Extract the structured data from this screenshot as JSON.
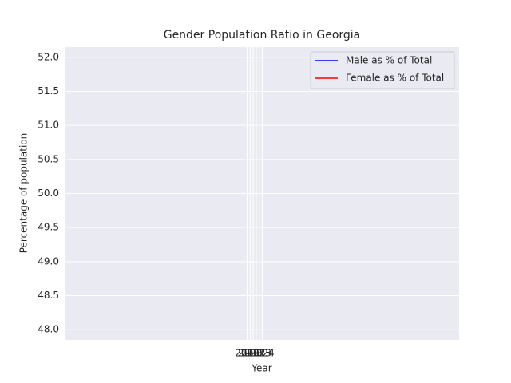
{
  "chart_data": {
    "type": "line",
    "title": "Gender Population Ratio in Georgia",
    "x_label": "Year",
    "y_label": "Percentage of population",
    "x": [],
    "series": [
      {
        "name": "Male as % of Total",
        "color": "#0000ff",
        "values": []
      },
      {
        "name": "Female as % of Total",
        "color": "#ff0000",
        "values": []
      }
    ],
    "xlim": [
      1959,
      2089
    ],
    "xticks": [
      2019,
      2020,
      2021,
      2022,
      2023,
      2024
    ],
    "ylim": [
      47.85,
      52.15
    ],
    "yticks": [
      {
        "value": 48,
        "label": "48.0"
      },
      48.5,
      {
        "value": 49,
        "label": "49.0"
      },
      49.5,
      {
        "value": 50,
        "label": "50.0"
      },
      50.5,
      {
        "value": 51,
        "label": "51.0"
      },
      51.5,
      {
        "value": 52,
        "label": "52.0"
      }
    ],
    "grid": true,
    "legend": "upper right"
  }
}
